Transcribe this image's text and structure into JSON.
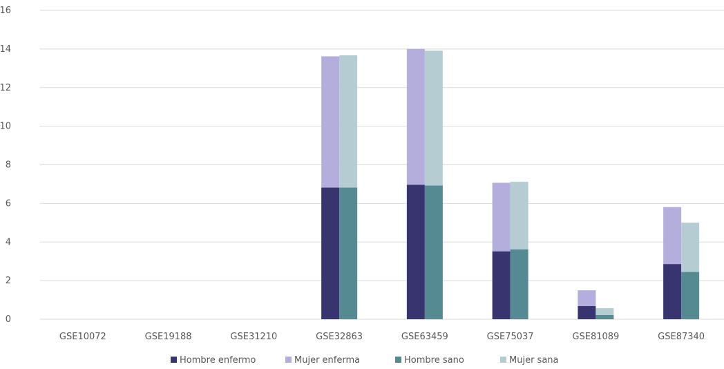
{
  "chart_data": {
    "type": "bar",
    "stacked": true,
    "categories": [
      "GSE10072",
      "GSE19188",
      "GSE31210",
      "GSE32863",
      "GSE63459",
      "GSE75037",
      "GSE81089",
      "GSE87340"
    ],
    "stacks": [
      {
        "stack": "enfermo",
        "series": [
          {
            "name": "Hombre enfermo",
            "color": "#373470",
            "values": [
              0,
              0,
              0,
              6.82,
              6.97,
              3.52,
              0.68,
              2.86
            ]
          },
          {
            "name": "Mujer enferma",
            "color": "#b3aedb",
            "values": [
              0,
              0,
              0,
              6.8,
              7.03,
              3.55,
              0.82,
              2.95
            ]
          }
        ]
      },
      {
        "stack": "sano",
        "series": [
          {
            "name": "Hombre sano",
            "color": "#568a93",
            "values": [
              0,
              0,
              0,
              6.82,
              6.93,
              3.62,
              0.22,
              2.45
            ]
          },
          {
            "name": "Mujer sana",
            "color": "#b5ccd3",
            "values": [
              0,
              0,
              0,
              6.85,
              6.98,
              3.5,
              0.35,
              2.55
            ]
          }
        ]
      }
    ],
    "yticks": [
      "0",
      "2",
      "4",
      "6",
      "8",
      "10",
      "12",
      "14",
      "16"
    ],
    "ylim": [
      0,
      16
    ],
    "grid": true,
    "legend": {
      "position": "bottom",
      "items": [
        {
          "label": "Hombre enfermo",
          "color": "#373470"
        },
        {
          "label": "Mujer enferma",
          "color": "#b3aedb"
        },
        {
          "label": "Hombre sano",
          "color": "#568a93"
        },
        {
          "label": "Mujer sana",
          "color": "#b5ccd3"
        }
      ]
    }
  }
}
